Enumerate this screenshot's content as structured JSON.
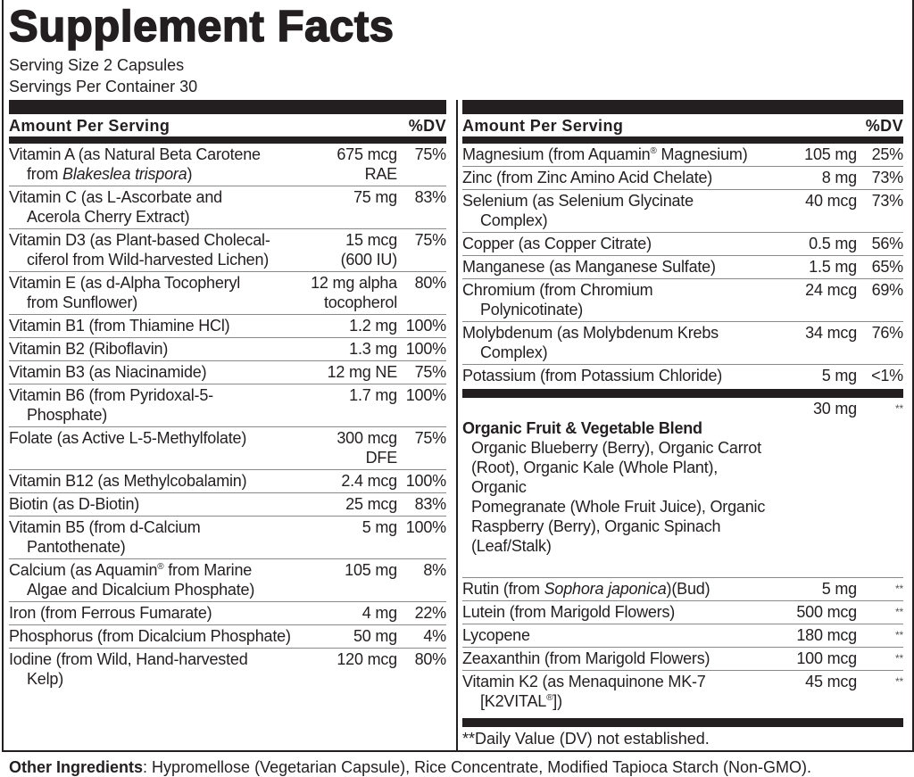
{
  "title": "Supplement Facts",
  "serving_size": "Serving Size 2 Capsules",
  "servings_per_container": "Servings Per Container 30",
  "header": {
    "amount": "Amount Per Serving",
    "dv": "%DV"
  },
  "left_rows": [
    {
      "name": [
        [
          "Vitamin A (as Natural Beta Carotene"
        ],
        [
          "from ",
          [
            "Blakeslea trispora",
            "i"
          ],
          ")"
        ]
      ],
      "amount": "675 mcg\nRAE",
      "dv": "75%"
    },
    {
      "name": [
        [
          "Vitamin C (as L-Ascorbate and"
        ],
        [
          "Acerola Cherry Extract)"
        ]
      ],
      "amount": "75 mg",
      "dv": "83%"
    },
    {
      "name": [
        [
          "Vitamin D3 (as Plant-based Cholecal-"
        ],
        [
          "ciferol from Wild-harvested Lichen)"
        ]
      ],
      "amount": "15 mcg\n(600 IU)",
      "dv": "75%"
    },
    {
      "name": [
        [
          "Vitamin E (as d-Alpha Tocopheryl"
        ],
        [
          "from Sunflower)"
        ]
      ],
      "amount": "12 mg alpha\ntocopherol",
      "dv": "80%"
    },
    {
      "name": [
        [
          "Vitamin B1 (from Thiamine HCl)"
        ]
      ],
      "amount": "1.2 mg",
      "dv": "100%"
    },
    {
      "name": [
        [
          "Vitamin B2 (Riboflavin)"
        ]
      ],
      "amount": "1.3 mg",
      "dv": "100%"
    },
    {
      "name": [
        [
          "Vitamin B3 (as Niacinamide)"
        ]
      ],
      "amount": "12 mg NE",
      "dv": "75%"
    },
    {
      "name": [
        [
          "Vitamin B6 (from Pyridoxal-5-"
        ],
        [
          "Phosphate)"
        ]
      ],
      "amount": "1.7 mg",
      "dv": "100%"
    },
    {
      "name": [
        [
          "Folate (as Active L-5-Methylfolate)"
        ]
      ],
      "amount": "300 mcg\nDFE",
      "dv": "75%"
    },
    {
      "name": [
        [
          "Vitamin B12 (as Methylcobalamin)"
        ]
      ],
      "amount": "2.4 mcg",
      "dv": "100%"
    },
    {
      "name": [
        [
          "Biotin (as D-Biotin)"
        ]
      ],
      "amount": "25 mcg",
      "dv": "83%"
    },
    {
      "name": [
        [
          "Vitamin B5 (from d-Calcium"
        ],
        [
          "Pantothenate)"
        ]
      ],
      "amount": "5 mg",
      "dv": "100%"
    },
    {
      "name": [
        [
          "Calcium (as Aquamin",
          [
            "®",
            "sup"
          ],
          " from Marine"
        ],
        [
          "Algae and Dicalcium Phosphate)"
        ]
      ],
      "amount": "105 mg",
      "dv": "8%"
    },
    {
      "name": [
        [
          "Iron (from Ferrous Fumarate)"
        ]
      ],
      "amount": "4 mg",
      "dv": "22%"
    },
    {
      "name": [
        [
          "Phosphorus (from Dicalcium Phosphate)"
        ]
      ],
      "amount": "50 mg",
      "dv": "4%"
    },
    {
      "name": [
        [
          "Iodine (from Wild, Hand-harvested"
        ],
        [
          "Kelp)"
        ]
      ],
      "amount": "120 mcg",
      "dv": "80%"
    }
  ],
  "right_rows": [
    {
      "name": [
        [
          "Magnesium (from Aquamin",
          [
            "®",
            "sup"
          ],
          " Magnesium)"
        ]
      ],
      "amount": "105 mg",
      "dv": "25%"
    },
    {
      "name": [
        [
          "Zinc (from Zinc Amino Acid Chelate)"
        ]
      ],
      "amount": "8 mg",
      "dv": "73%"
    },
    {
      "name": [
        [
          "Selenium (as Selenium Glycinate"
        ],
        [
          "Complex)"
        ]
      ],
      "amount": "40 mcg",
      "dv": "73%"
    },
    {
      "name": [
        [
          "Copper (as Copper Citrate)"
        ]
      ],
      "amount": "0.5 mg",
      "dv": "56%"
    },
    {
      "name": [
        [
          "Manganese (as Manganese Sulfate)"
        ]
      ],
      "amount": "1.5 mg",
      "dv": "65%"
    },
    {
      "name": [
        [
          "Chromium (from Chromium"
        ],
        [
          "Polynicotinate)"
        ]
      ],
      "amount": "24 mcg",
      "dv": "69%"
    },
    {
      "name": [
        [
          "Molybdenum (as Molybdenum Krebs"
        ],
        [
          "Complex)"
        ]
      ],
      "amount": "34 mcg",
      "dv": "76%"
    },
    {
      "name": [
        [
          "Potassium (from Potassium Chloride)"
        ]
      ],
      "amount": "5 mg",
      "dv": "<1%"
    }
  ],
  "blend": {
    "name": "Organic Fruit & Vegetable Blend",
    "amount": "30 mg",
    "dv": "**",
    "ingredients": "Organic Blueberry (Berry), Organic Carrot\n(Root), Organic Kale (Whole Plant), Organic\nPomegranate (Whole Fruit Juice), Organic\nRaspberry (Berry), Organic Spinach\n(Leaf/Stalk)"
  },
  "right_rows_2": [
    {
      "name": [
        [
          "Rutin (from ",
          [
            "Sophora japonica",
            "i"
          ],
          ")(Bud)"
        ]
      ],
      "amount": "5 mg",
      "dv": "**"
    },
    {
      "name": [
        [
          "Lutein (from Marigold Flowers)"
        ]
      ],
      "amount": "500 mcg",
      "dv": "**"
    },
    {
      "name": [
        [
          "Lycopene"
        ]
      ],
      "amount": "180 mcg",
      "dv": "**"
    },
    {
      "name": [
        [
          "Zeaxanthin (from Marigold Flowers)"
        ]
      ],
      "amount": "100 mcg",
      "dv": "**"
    },
    {
      "name": [
        [
          "Vitamin K2 (as Menaquinone MK-7"
        ],
        [
          "[K2VITAL",
          [
            "®",
            "sup"
          ],
          "])"
        ]
      ],
      "amount": "45 mcg",
      "dv": "**"
    }
  ],
  "footnote": "**Daily Value (DV) not established.",
  "other_ingredients": {
    "label": "Other Ingredients",
    "text": ": Hypromellose (Vegetarian Capsule), Rice Concentrate, Modified Tapioca Starch (Non-GMO)."
  }
}
